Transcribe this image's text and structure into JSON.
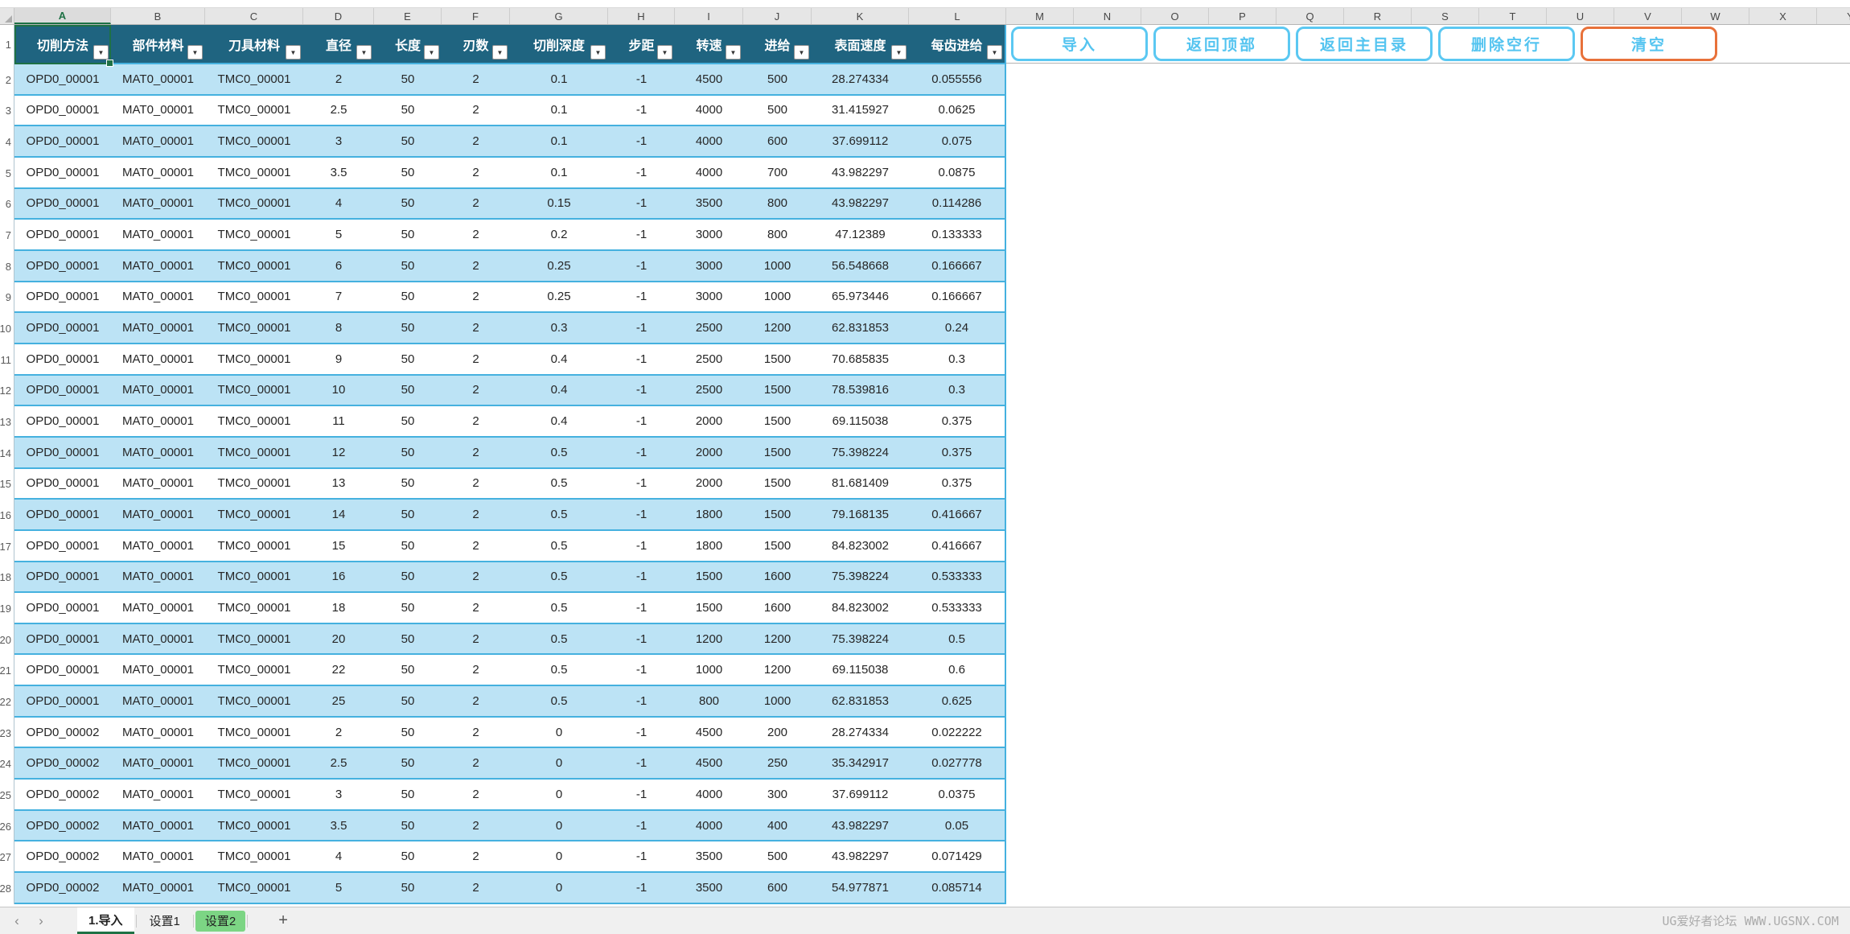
{
  "colors": {
    "header_fill": "#1F6480",
    "band_blue": "#BCE3F5",
    "row_separator": "#45B1DF",
    "button_blue_border": "#5BC8F2",
    "button_text": "#54C4F0",
    "button_orange_border": "#E8713A",
    "selection_green": "#1E7145",
    "tab_highlight_green": "#7CD584"
  },
  "icons": {
    "filter_dropdown": "▼",
    "nav_prev": "‹",
    "nav_next": "›",
    "add_tab": "+"
  },
  "column_letter_row": {
    "letters": [
      "A",
      "B",
      "C",
      "D",
      "E",
      "F",
      "G",
      "H",
      "I",
      "J",
      "K",
      "L",
      "M",
      "N",
      "O",
      "P",
      "Q",
      "R",
      "S",
      "T",
      "U",
      "V",
      "W",
      "X",
      "Y"
    ],
    "selected_letter": "A"
  },
  "toolbar_buttons": [
    {
      "label": "导入",
      "variant": "blue"
    },
    {
      "label": "返回顶部",
      "variant": "blue"
    },
    {
      "label": "返回主目录",
      "variant": "blue"
    },
    {
      "label": "删除空行",
      "variant": "blue"
    },
    {
      "label": "清空",
      "variant": "orange"
    }
  ],
  "table": {
    "header_row_number": "1",
    "column_headers": [
      "切削方法",
      "部件材料",
      "刀具材料",
      "直径",
      "长度",
      "刃数",
      "切削深度",
      "步距",
      "转速",
      "进给",
      "表面速度",
      "每齿进给"
    ],
    "selected_cell": "A1",
    "row_numbers": [
      "2",
      "3",
      "4",
      "5",
      "6",
      "7",
      "8",
      "9",
      "10",
      "11",
      "12",
      "13",
      "14",
      "15",
      "16",
      "17",
      "18",
      "19",
      "20",
      "21",
      "22",
      "23",
      "24",
      "25",
      "26",
      "27",
      "28"
    ],
    "rows": [
      [
        "OPD0_00001",
        "MAT0_00001",
        "TMC0_00001",
        "2",
        "50",
        "2",
        "0.1",
        "-1",
        "4500",
        "500",
        "28.274334",
        "0.055556"
      ],
      [
        "OPD0_00001",
        "MAT0_00001",
        "TMC0_00001",
        "2.5",
        "50",
        "2",
        "0.1",
        "-1",
        "4000",
        "500",
        "31.415927",
        "0.0625"
      ],
      [
        "OPD0_00001",
        "MAT0_00001",
        "TMC0_00001",
        "3",
        "50",
        "2",
        "0.1",
        "-1",
        "4000",
        "600",
        "37.699112",
        "0.075"
      ],
      [
        "OPD0_00001",
        "MAT0_00001",
        "TMC0_00001",
        "3.5",
        "50",
        "2",
        "0.1",
        "-1",
        "4000",
        "700",
        "43.982297",
        "0.0875"
      ],
      [
        "OPD0_00001",
        "MAT0_00001",
        "TMC0_00001",
        "4",
        "50",
        "2",
        "0.15",
        "-1",
        "3500",
        "800",
        "43.982297",
        "0.114286"
      ],
      [
        "OPD0_00001",
        "MAT0_00001",
        "TMC0_00001",
        "5",
        "50",
        "2",
        "0.2",
        "-1",
        "3000",
        "800",
        "47.12389",
        "0.133333"
      ],
      [
        "OPD0_00001",
        "MAT0_00001",
        "TMC0_00001",
        "6",
        "50",
        "2",
        "0.25",
        "-1",
        "3000",
        "1000",
        "56.548668",
        "0.166667"
      ],
      [
        "OPD0_00001",
        "MAT0_00001",
        "TMC0_00001",
        "7",
        "50",
        "2",
        "0.25",
        "-1",
        "3000",
        "1000",
        "65.973446",
        "0.166667"
      ],
      [
        "OPD0_00001",
        "MAT0_00001",
        "TMC0_00001",
        "8",
        "50",
        "2",
        "0.3",
        "-1",
        "2500",
        "1200",
        "62.831853",
        "0.24"
      ],
      [
        "OPD0_00001",
        "MAT0_00001",
        "TMC0_00001",
        "9",
        "50",
        "2",
        "0.4",
        "-1",
        "2500",
        "1500",
        "70.685835",
        "0.3"
      ],
      [
        "OPD0_00001",
        "MAT0_00001",
        "TMC0_00001",
        "10",
        "50",
        "2",
        "0.4",
        "-1",
        "2500",
        "1500",
        "78.539816",
        "0.3"
      ],
      [
        "OPD0_00001",
        "MAT0_00001",
        "TMC0_00001",
        "11",
        "50",
        "2",
        "0.4",
        "-1",
        "2000",
        "1500",
        "69.115038",
        "0.375"
      ],
      [
        "OPD0_00001",
        "MAT0_00001",
        "TMC0_00001",
        "12",
        "50",
        "2",
        "0.5",
        "-1",
        "2000",
        "1500",
        "75.398224",
        "0.375"
      ],
      [
        "OPD0_00001",
        "MAT0_00001",
        "TMC0_00001",
        "13",
        "50",
        "2",
        "0.5",
        "-1",
        "2000",
        "1500",
        "81.681409",
        "0.375"
      ],
      [
        "OPD0_00001",
        "MAT0_00001",
        "TMC0_00001",
        "14",
        "50",
        "2",
        "0.5",
        "-1",
        "1800",
        "1500",
        "79.168135",
        "0.416667"
      ],
      [
        "OPD0_00001",
        "MAT0_00001",
        "TMC0_00001",
        "15",
        "50",
        "2",
        "0.5",
        "-1",
        "1800",
        "1500",
        "84.823002",
        "0.416667"
      ],
      [
        "OPD0_00001",
        "MAT0_00001",
        "TMC0_00001",
        "16",
        "50",
        "2",
        "0.5",
        "-1",
        "1500",
        "1600",
        "75.398224",
        "0.533333"
      ],
      [
        "OPD0_00001",
        "MAT0_00001",
        "TMC0_00001",
        "18",
        "50",
        "2",
        "0.5",
        "-1",
        "1500",
        "1600",
        "84.823002",
        "0.533333"
      ],
      [
        "OPD0_00001",
        "MAT0_00001",
        "TMC0_00001",
        "20",
        "50",
        "2",
        "0.5",
        "-1",
        "1200",
        "1200",
        "75.398224",
        "0.5"
      ],
      [
        "OPD0_00001",
        "MAT0_00001",
        "TMC0_00001",
        "22",
        "50",
        "2",
        "0.5",
        "-1",
        "1000",
        "1200",
        "69.115038",
        "0.6"
      ],
      [
        "OPD0_00001",
        "MAT0_00001",
        "TMC0_00001",
        "25",
        "50",
        "2",
        "0.5",
        "-1",
        "800",
        "1000",
        "62.831853",
        "0.625"
      ],
      [
        "OPD0_00002",
        "MAT0_00001",
        "TMC0_00001",
        "2",
        "50",
        "2",
        "0",
        "-1",
        "4500",
        "200",
        "28.274334",
        "0.022222"
      ],
      [
        "OPD0_00002",
        "MAT0_00001",
        "TMC0_00001",
        "2.5",
        "50",
        "2",
        "0",
        "-1",
        "4500",
        "250",
        "35.342917",
        "0.027778"
      ],
      [
        "OPD0_00002",
        "MAT0_00001",
        "TMC0_00001",
        "3",
        "50",
        "2",
        "0",
        "-1",
        "4000",
        "300",
        "37.699112",
        "0.0375"
      ],
      [
        "OPD0_00002",
        "MAT0_00001",
        "TMC0_00001",
        "3.5",
        "50",
        "2",
        "0",
        "-1",
        "4000",
        "400",
        "43.982297",
        "0.05"
      ],
      [
        "OPD0_00002",
        "MAT0_00001",
        "TMC0_00001",
        "4",
        "50",
        "2",
        "0",
        "-1",
        "3500",
        "500",
        "43.982297",
        "0.071429"
      ],
      [
        "OPD0_00002",
        "MAT0_00001",
        "TMC0_00001",
        "5",
        "50",
        "2",
        "0",
        "-1",
        "3500",
        "600",
        "54.977871",
        "0.085714"
      ]
    ]
  },
  "sheet_bar": {
    "tabs": [
      {
        "label": "1.导入",
        "state": "active"
      },
      {
        "label": "设置1",
        "state": "normal"
      },
      {
        "label": "设置2",
        "state": "highlight"
      }
    ],
    "watermark": "UG爱好者论坛 WWW.UGSNX.COM"
  }
}
